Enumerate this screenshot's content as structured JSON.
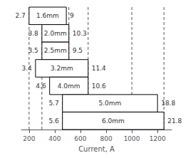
{
  "chart_data": {
    "type": "range_bar",
    "orientation": "horizontal",
    "xlabel": "Current, A",
    "categories": [
      "1.6mm",
      "2.0mm",
      "2.5mm",
      "3.2mm",
      "4.0mm",
      "5.0mm",
      "6.0mm"
    ],
    "starts": [
      200,
      300,
      300,
      250,
      360,
      460,
      460
    ],
    "ends": [
      490,
      510,
      510,
      660,
      660,
      1200,
      1250
    ],
    "left_labels": [
      "2.7",
      "3.8",
      "3.5",
      "3.4",
      "4.6",
      "5.7",
      "5.6"
    ],
    "right_labels": [
      "9",
      "10.3",
      "9.5",
      "11.4",
      "10.6",
      "18.8",
      "21.8"
    ],
    "vlines": [
      200,
      300,
      460,
      510,
      660,
      1000,
      1250
    ],
    "xlim": [
      140,
      1310
    ],
    "xticks": [
      200,
      400,
      600,
      800,
      1000,
      1200
    ],
    "tick_labels": "x",
    "grid": false,
    "color": "#000000"
  }
}
